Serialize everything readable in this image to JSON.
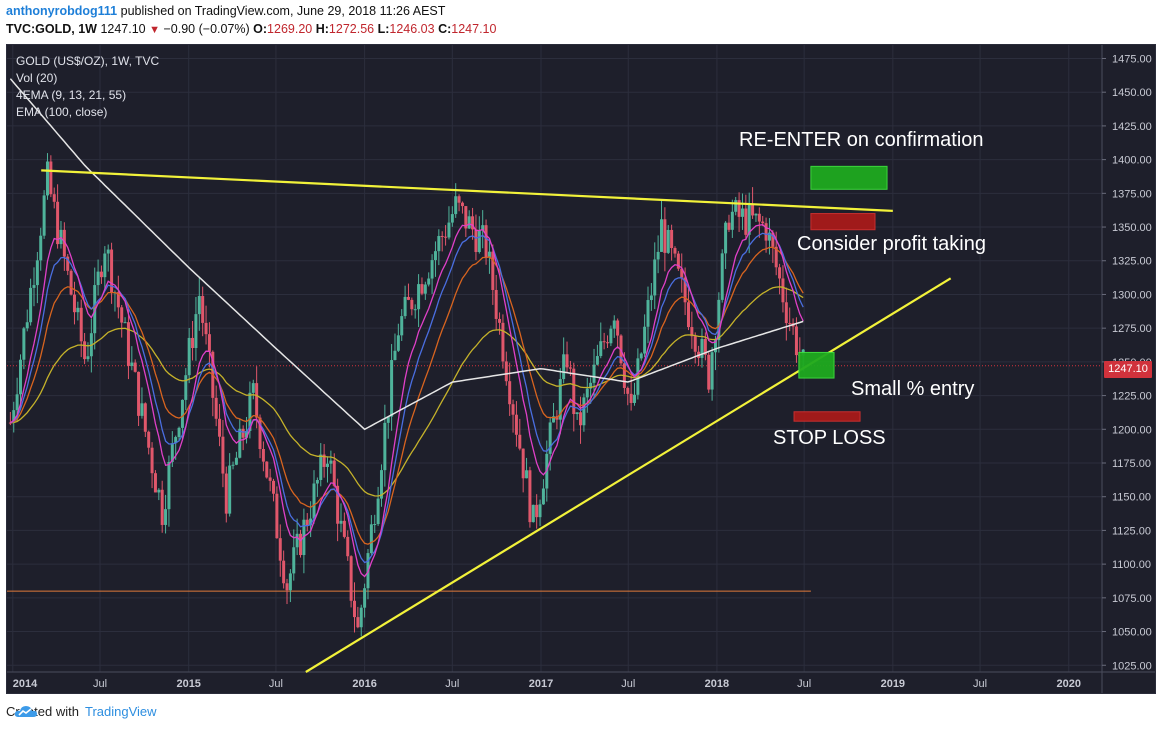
{
  "header": {
    "author": "anthonyrobdog111",
    "published": "published on TradingView.com, June 29, 2018 11:26 AEST",
    "symbol": "TVC:GOLD, 1W",
    "last": "1247.10",
    "change": "−0.90 (−0.07%)",
    "o_label": "O:",
    "o_val": "1269.20",
    "h_label": "H:",
    "h_val": "1272.56",
    "l_label": "L:",
    "l_val": "1246.03",
    "c_label": "C:",
    "c_val": "1247.10"
  },
  "legend": {
    "title": "GOLD (US$/OZ), 1W, TVC",
    "vol": "Vol (20)",
    "ema4": "4EMA (9, 13, 21, 55)",
    "ema100": "EMA (100, close)"
  },
  "annotations": {
    "reenter": "RE-ENTER on confirmation",
    "profit": "Consider profit taking",
    "entry": "Small % entry",
    "stop": "STOP LOSS"
  },
  "price_tag": "1247.10",
  "footer": {
    "created": "Created with",
    "brand": "TradingView"
  },
  "colors": {
    "background": "#1e1f2b",
    "up": "#4fb39b",
    "down": "#e0576b",
    "trendline": "#f2f23a",
    "ema100": "#e6e6e6",
    "ema9": "#e040c8",
    "ema13": "#4a6ee0",
    "ema21": "#d8641f",
    "ema55": "#c5b22a",
    "green_box": "#1faa1f",
    "red_box": "#a81a1a"
  },
  "chart_data": {
    "type": "candlestick",
    "title": "GOLD (US$/OZ), 1W, TVC",
    "y_ticks": [
      1475,
      1450,
      1425,
      1400,
      1375,
      1350,
      1325,
      1300,
      1275,
      1250,
      1225,
      1200,
      1175,
      1150,
      1125,
      1100,
      1075,
      1050,
      1025
    ],
    "ylim": [
      1020,
      1485
    ],
    "x_ticks": [
      "2014",
      "Jul",
      "2015",
      "Jul",
      "2016",
      "Jul",
      "2017",
      "Jul",
      "2018",
      "Jul",
      "2019",
      "Jul",
      "2020"
    ],
    "x_tick_dates": [
      "2014-01-01",
      "2014-07-01",
      "2015-01-01",
      "2015-07-01",
      "2016-01-01",
      "2016-07-01",
      "2017-01-01",
      "2017-07-01",
      "2018-01-01",
      "2018-07-01",
      "2019-01-01",
      "2019-07-01",
      "2020-01-01"
    ],
    "xlim": [
      "2013-12-20",
      "2020-03-10"
    ],
    "price_anchors": [
      {
        "date": "2013-12-27",
        "price": 1205
      },
      {
        "date": "2014-03-14",
        "price": 1385
      },
      {
        "date": "2014-06-01",
        "price": 1250
      },
      {
        "date": "2014-07-10",
        "price": 1340
      },
      {
        "date": "2014-11-07",
        "price": 1140
      },
      {
        "date": "2015-01-23",
        "price": 1300
      },
      {
        "date": "2015-03-20",
        "price": 1150
      },
      {
        "date": "2015-05-15",
        "price": 1225
      },
      {
        "date": "2015-07-24",
        "price": 1085
      },
      {
        "date": "2015-10-16",
        "price": 1185
      },
      {
        "date": "2015-12-18",
        "price": 1050
      },
      {
        "date": "2016-03-11",
        "price": 1275
      },
      {
        "date": "2016-07-08",
        "price": 1365
      },
      {
        "date": "2016-09-09",
        "price": 1335
      },
      {
        "date": "2016-12-16",
        "price": 1130
      },
      {
        "date": "2017-02-24",
        "price": 1255
      },
      {
        "date": "2017-03-17",
        "price": 1200
      },
      {
        "date": "2017-06-02",
        "price": 1290
      },
      {
        "date": "2017-07-07",
        "price": 1210
      },
      {
        "date": "2017-09-08",
        "price": 1350
      },
      {
        "date": "2017-12-15",
        "price": 1240
      },
      {
        "date": "2018-01-26",
        "price": 1360
      },
      {
        "date": "2018-04-13",
        "price": 1350
      },
      {
        "date": "2018-05-25",
        "price": 1290
      },
      {
        "date": "2018-06-29",
        "price": 1247
      }
    ],
    "ema100_anchors": [
      {
        "date": "2013-12-27",
        "price": 1460
      },
      {
        "date": "2014-06-01",
        "price": 1395
      },
      {
        "date": "2015-01-01",
        "price": 1320
      },
      {
        "date": "2015-07-01",
        "price": 1260
      },
      {
        "date": "2016-01-01",
        "price": 1200
      },
      {
        "date": "2016-07-01",
        "price": 1235
      },
      {
        "date": "2017-01-01",
        "price": 1245
      },
      {
        "date": "2017-07-01",
        "price": 1235
      },
      {
        "date": "2018-01-01",
        "price": 1260
      },
      {
        "date": "2018-06-29",
        "price": 1280
      }
    ],
    "horizontal_line": {
      "price": 1080,
      "from": "2013-12-20",
      "to": "2018-07-15"
    },
    "last_price_line": 1247.1,
    "trendlines": [
      {
        "from": {
          "date": "2014-03-01",
          "price": 1392
        },
        "to": {
          "date": "2019-01-01",
          "price": 1362
        }
      },
      {
        "from": {
          "date": "2015-09-01",
          "price": 1020
        },
        "to": {
          "date": "2019-05-01",
          "price": 1312
        }
      }
    ],
    "zones": [
      {
        "label": "reenter",
        "date_from": "2018-07-15",
        "date_to": "2018-12-20",
        "price_from": 1378,
        "price_to": 1395,
        "color": "green"
      },
      {
        "label": "profit",
        "date_from": "2018-07-15",
        "date_to": "2018-11-25",
        "price_from": 1348,
        "price_to": 1360,
        "color": "red"
      },
      {
        "label": "entry",
        "date_from": "2018-06-20",
        "date_to": "2018-09-01",
        "price_from": 1238,
        "price_to": 1257,
        "color": "green"
      },
      {
        "label": "stop",
        "date_from": "2018-06-10",
        "date_to": "2018-10-25",
        "price_from": 1206,
        "price_to": 1213,
        "color": "red"
      }
    ]
  }
}
